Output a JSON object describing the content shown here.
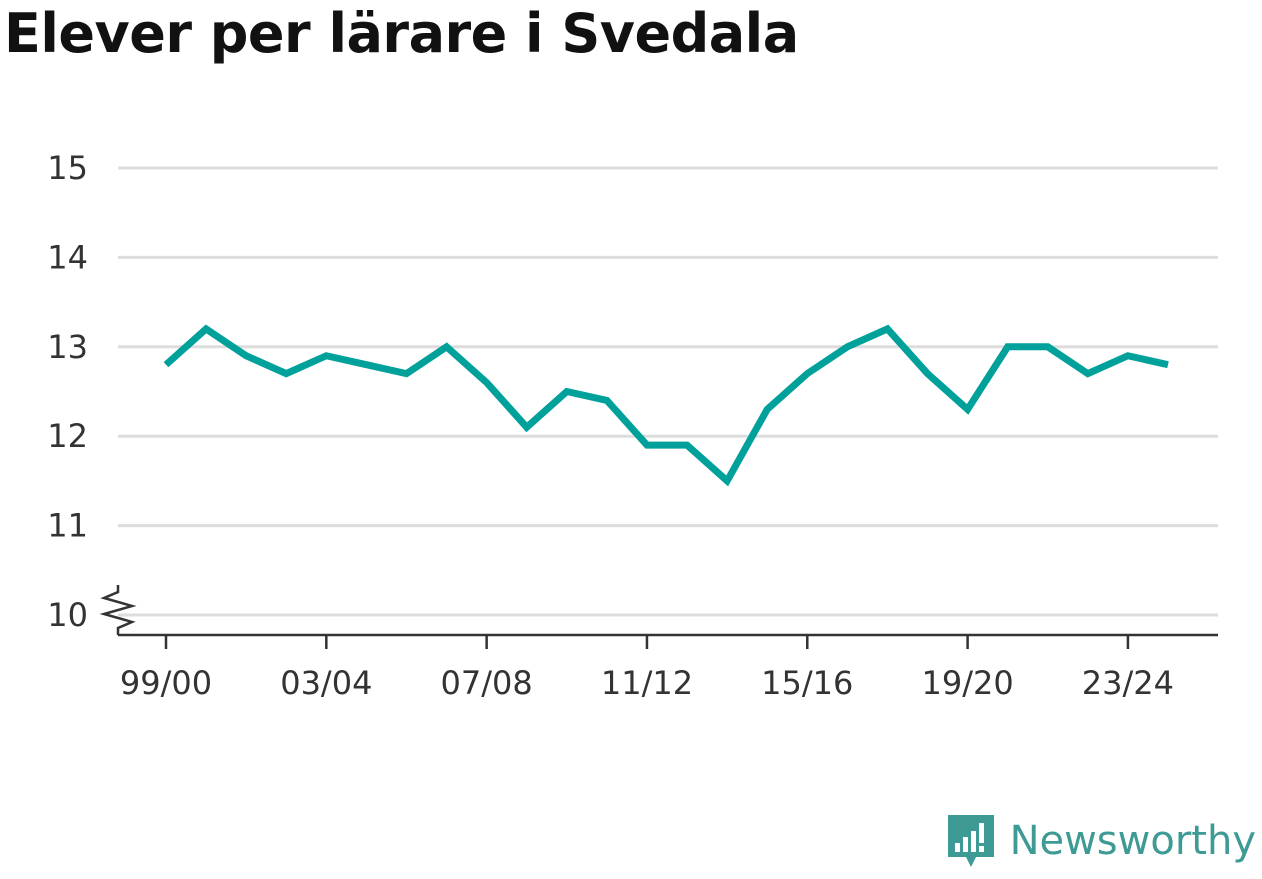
{
  "title": "Elever per lärare i Svedala",
  "brand": {
    "name": "Newsworthy",
    "icon": "newsworthy-logo-icon",
    "color": "#3e9a94"
  },
  "chart_data": {
    "type": "line",
    "title": "Elever per lärare i Svedala",
    "xlabel": "",
    "ylabel": "",
    "x": [
      "99/00",
      "00/01",
      "01/02",
      "02/03",
      "03/04",
      "04/05",
      "05/06",
      "06/07",
      "07/08",
      "08/09",
      "09/10",
      "10/11",
      "11/12",
      "12/13",
      "13/14",
      "14/15",
      "15/16",
      "16/17",
      "17/18",
      "18/19",
      "19/20",
      "20/21",
      "21/22",
      "22/23",
      "23/24",
      "24/25"
    ],
    "xticks": [
      "99/00",
      "03/04",
      "07/08",
      "11/12",
      "15/16",
      "19/20",
      "23/24"
    ],
    "yticks": [
      10,
      11,
      12,
      13,
      14,
      15
    ],
    "ylim": [
      10,
      15
    ],
    "y_axis_break": true,
    "grid": true,
    "series": [
      {
        "color": "#00a19a",
        "values": [
          12.8,
          13.2,
          12.9,
          12.7,
          12.9,
          12.8,
          12.7,
          13.0,
          12.6,
          12.1,
          12.5,
          12.4,
          11.9,
          11.9,
          11.5,
          12.3,
          12.7,
          13.0,
          13.2,
          12.7,
          12.3,
          13.0,
          13.0,
          12.7,
          12.9,
          12.8
        ]
      }
    ]
  }
}
